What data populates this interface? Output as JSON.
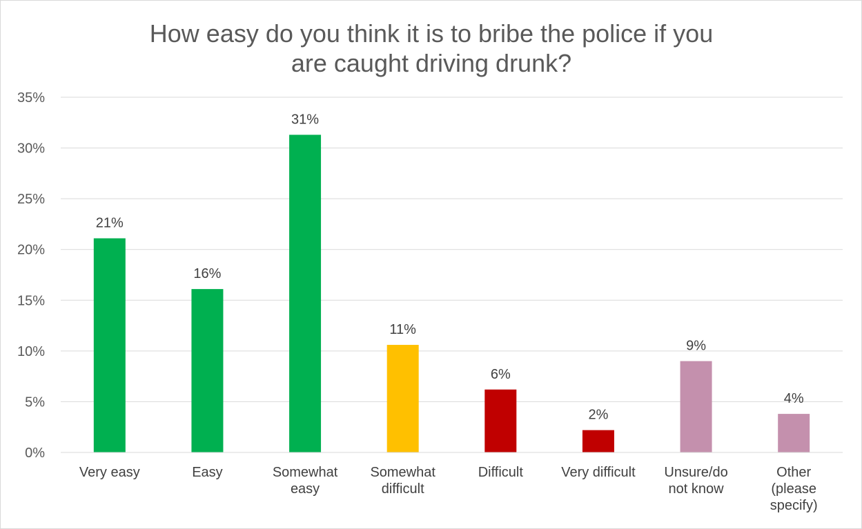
{
  "chart_data": {
    "type": "bar",
    "title": "How easy do you think it is to bribe the police if you are caught driving drunk?",
    "title_lines": [
      "How easy do you think it is to bribe the police if you",
      "are caught driving drunk?"
    ],
    "categories": [
      [
        "Very easy"
      ],
      [
        "Easy"
      ],
      [
        "Somewhat",
        "easy"
      ],
      [
        "Somewhat",
        "difficult"
      ],
      [
        "Difficult"
      ],
      [
        "Very difficult"
      ],
      [
        "Unsure/do",
        "not know"
      ],
      [
        "Other",
        "(please",
        "specify)"
      ]
    ],
    "values": [
      21.1,
      16.1,
      31.3,
      10.6,
      6.2,
      2.2,
      9.0,
      3.8
    ],
    "data_labels": [
      "21%",
      "16%",
      "31%",
      "11%",
      "6%",
      "2%",
      "9%",
      "4%"
    ],
    "bar_colors": [
      "#00b050",
      "#00b050",
      "#00b050",
      "#ffc000",
      "#c00000",
      "#c00000",
      "#c490ad",
      "#c490ad"
    ],
    "ylim": [
      0,
      35
    ],
    "yticks": [
      0,
      5,
      10,
      15,
      20,
      25,
      30,
      35
    ],
    "ytick_labels": [
      "0%",
      "5%",
      "10%",
      "15%",
      "20%",
      "25%",
      "30%",
      "35%"
    ],
    "xlabel": "",
    "ylabel": "",
    "grid": true,
    "legend": "none"
  }
}
